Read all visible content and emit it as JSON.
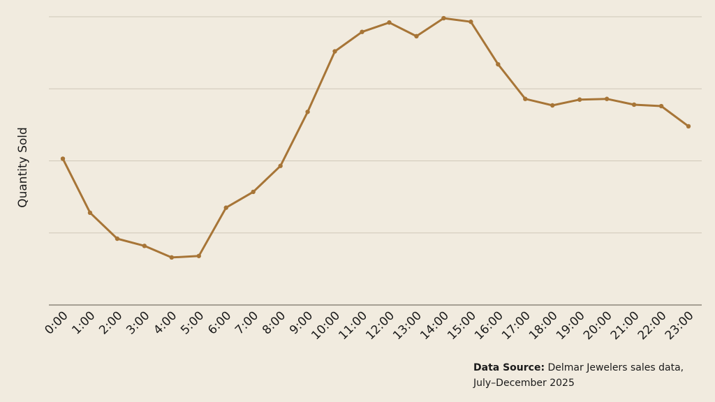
{
  "chart_data": {
    "type": "line",
    "ylabel": "Quantity Sold",
    "x": [
      "0:00",
      "1:00",
      "2:00",
      "3:00",
      "4:00",
      "5:00",
      "6:00",
      "7:00",
      "8:00",
      "9:00",
      "10:00",
      "11:00",
      "12:00",
      "13:00",
      "14:00",
      "15:00",
      "16:00",
      "17:00",
      "18:00",
      "19:00",
      "20:00",
      "21:00",
      "22:00",
      "23:00"
    ],
    "values": [
      2.03,
      1.28,
      0.92,
      0.82,
      0.66,
      0.68,
      1.35,
      1.57,
      1.93,
      2.68,
      3.52,
      3.79,
      3.92,
      3.73,
      3.98,
      3.93,
      3.34,
      2.86,
      2.77,
      2.85,
      2.86,
      2.78,
      2.76,
      2.48
    ],
    "ylim": [
      0,
      4
    ],
    "grid": true,
    "line_color": "#a77537"
  },
  "source": {
    "label": "Data Source:",
    "text": " Delmar Jewelers sales data, July–December 2025"
  }
}
